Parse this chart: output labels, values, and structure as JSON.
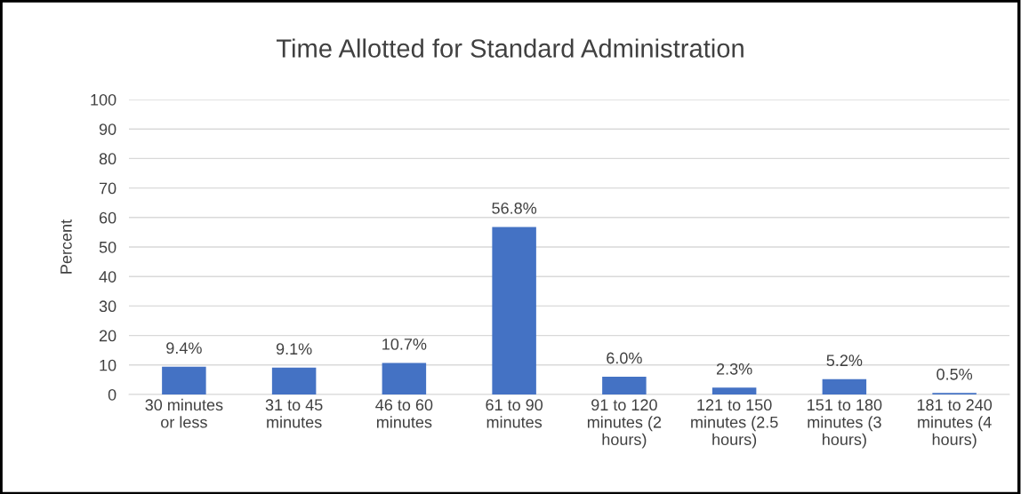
{
  "chart_data": {
    "type": "bar",
    "title": "Time Allotted for Standard Administration",
    "ylabel": "Percent",
    "categories": [
      "30 minutes or less",
      "31 to 45 minutes",
      "46 to 60 minutes",
      "61 to 90 minutes",
      "91 to 120 minutes (2 hours)",
      "121 to 150 minutes (2.5 hours)",
      "151 to 180 minutes (3 hours)",
      "181 to 240 minutes (4 hours)"
    ],
    "values": [
      9.4,
      9.1,
      10.7,
      56.8,
      6.0,
      2.3,
      5.2,
      0.5
    ],
    "value_labels": [
      "9.4%",
      "9.1%",
      "10.7%",
      "56.8%",
      "6.0%",
      "2.3%",
      "5.2%",
      "0.5%"
    ],
    "color": "#4472c4",
    "ylim": [
      0,
      100
    ],
    "yticks": [
      0,
      10,
      20,
      30,
      40,
      50,
      60,
      70,
      80,
      90,
      100
    ],
    "grid": "y"
  }
}
